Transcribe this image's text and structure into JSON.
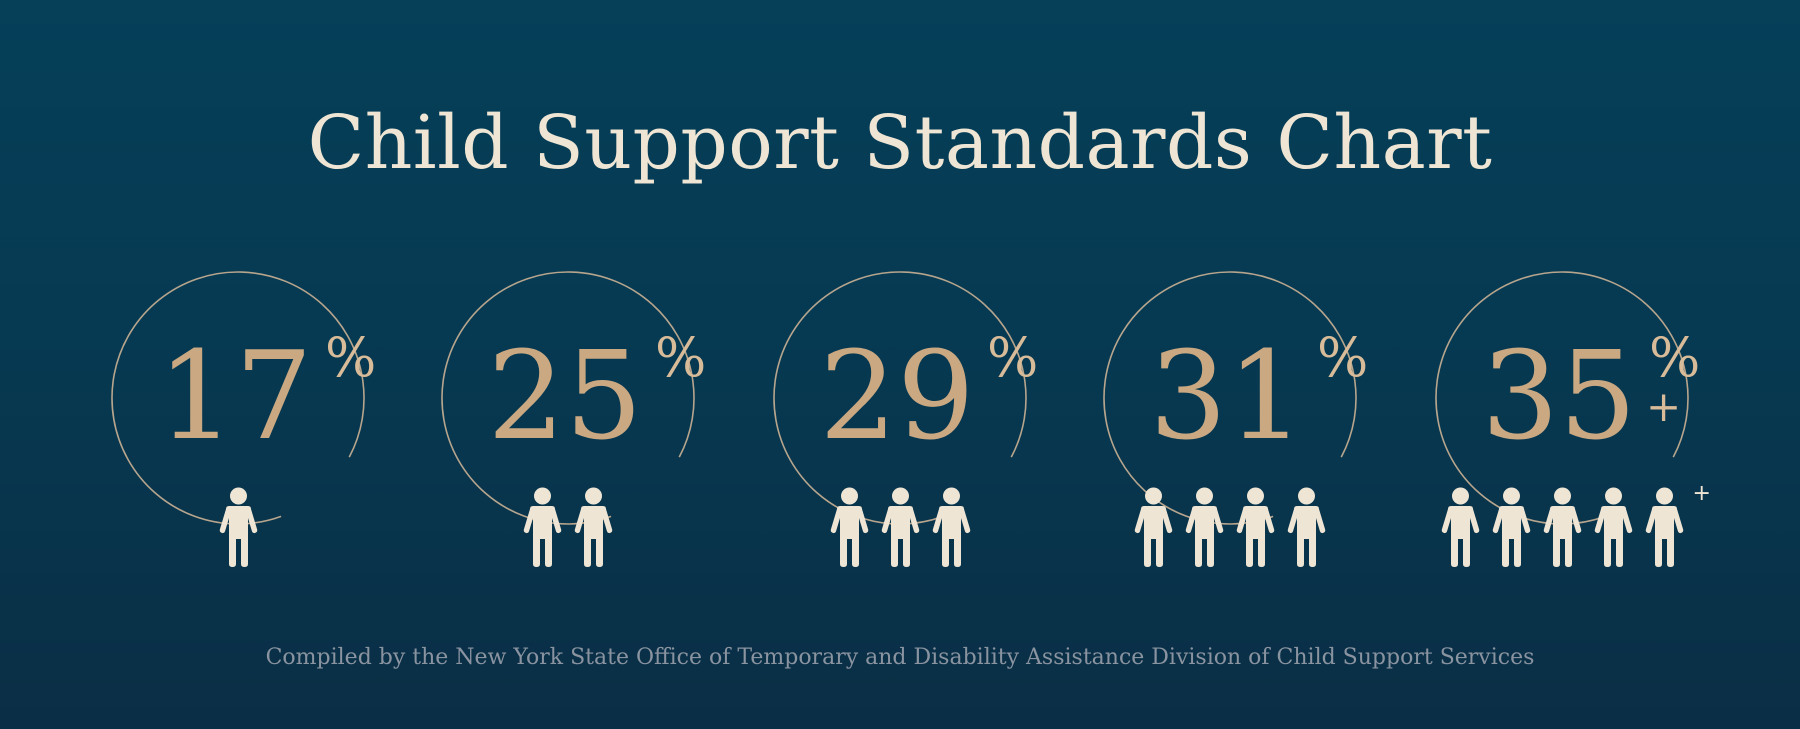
{
  "title": "Child Support Standards Chart",
  "footer": "Compiled by the New York State Office of Temporary and Disability Assistance Division of Child Support Services",
  "colors": {
    "background": "#063a52",
    "title_text": "#efe5d4",
    "percent_text": "#c9a882",
    "person_icon": "#efe5d4",
    "ring_stroke": "#b7a58d",
    "footer_text": "#8a93a0"
  },
  "chart_data": {
    "type": "table",
    "title": "Child Support Standards Chart",
    "categories": [
      "1",
      "2",
      "3",
      "4",
      "5+"
    ],
    "values": [
      17,
      25,
      29,
      31,
      35
    ],
    "panels": [
      {
        "children": 1,
        "value": "17",
        "unit": "%",
        "value_suffix": "",
        "children_suffix": ""
      },
      {
        "children": 2,
        "value": "25",
        "unit": "%",
        "value_suffix": "",
        "children_suffix": ""
      },
      {
        "children": 3,
        "value": "29",
        "unit": "%",
        "value_suffix": "",
        "children_suffix": ""
      },
      {
        "children": 4,
        "value": "31",
        "unit": "%",
        "value_suffix": "",
        "children_suffix": ""
      },
      {
        "children": 5,
        "value": "35",
        "unit": "%",
        "value_suffix": "+",
        "children_suffix": "+"
      }
    ],
    "icon": "person-icon"
  }
}
